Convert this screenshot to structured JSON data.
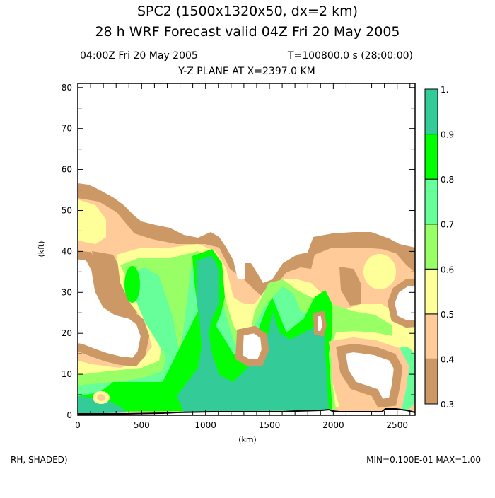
{
  "header": {
    "title_line1": "SPC2 (1500x1320x50, dx=2 km)",
    "title_line2": "28 h WRF Forecast valid 04Z Fri 20 May 2005",
    "valid_time": "04:00Z Fri 20 May 2005",
    "model_time": "T=100800.0 s (28:00:00)",
    "plane": "Y-Z PLANE AT X=2397.0 KM"
  },
  "footer": {
    "field_label": "RH, SHADED)",
    "min_max": "MIN=0.100E-01 MAX=1.00"
  },
  "chart_data": {
    "type": "heatmap",
    "title": "Y-Z PLANE AT X=2397.0 KM",
    "field": "RH",
    "xlabel": "(km)",
    "ylabel": "(kft)",
    "xlim": [
      0,
      2640
    ],
    "ylim": [
      0,
      81
    ],
    "x_ticks": [
      0,
      500,
      1000,
      1500,
      2000,
      2500
    ],
    "x_tick_labels": [
      "0",
      "500",
      "1000",
      "1500",
      "2000",
      "2500"
    ],
    "x_minor_step": 100,
    "y_ticks": [
      0,
      10,
      20,
      30,
      40,
      50,
      60,
      70,
      80
    ],
    "y_tick_labels": [
      "0",
      "10",
      "20",
      "30",
      "40",
      "50",
      "60",
      "70",
      "80"
    ],
    "y_minor_step": 5,
    "colorbar": {
      "levels": [
        0.3,
        0.4,
        0.5,
        0.6,
        0.7,
        0.8,
        0.9,
        1.0
      ],
      "level_labels": [
        "0.3",
        "0.4",
        "0.5",
        "0.6",
        "0.7",
        "0.8",
        "0.9",
        "1."
      ],
      "colors": [
        "#CC9966",
        "#FFCC99",
        "#FFFF99",
        "#99FF66",
        "#66FF99",
        "#00FF00",
        "#33CC99"
      ]
    },
    "min": 0.01,
    "max": 1.0
  }
}
